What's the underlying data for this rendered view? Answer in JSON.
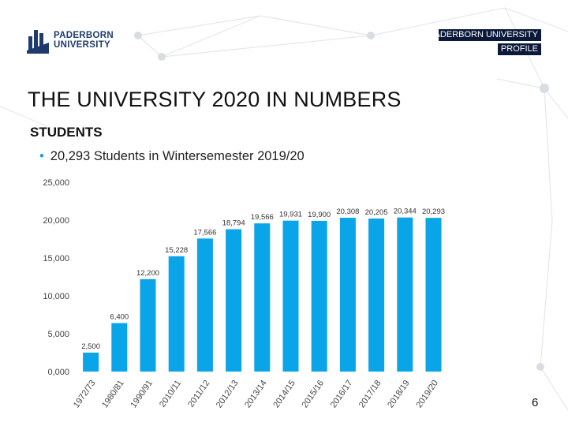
{
  "header": {
    "logo": {
      "line1": "PADERBORN",
      "line2": "UNIVERSITY"
    },
    "tag_line1": "PADERBORN UNIVERSITY",
    "tag_line2": "PROFILE"
  },
  "title": "THE UNIVERSITY 2020 IN NUMBERS",
  "subtitle": "STUDENTS",
  "bullet": "20,293 Students in Wintersemester 2019/20",
  "page_number": "6",
  "colors": {
    "bar": "#0aa4e8",
    "tag_bg": "#0b1a3a",
    "accent": "#1a9be0",
    "network": "#dfe3e8"
  },
  "chart_data": {
    "type": "bar",
    "categories": [
      "1972/73",
      "1980/81",
      "1990/91",
      "2010/11",
      "2011/12",
      "2012/13",
      "2013/14",
      "2014/15",
      "2015/16",
      "2016/17",
      "2017/18",
      "2018/19",
      "2019/20"
    ],
    "values": [
      2500,
      6400,
      12200,
      15228,
      17566,
      18794,
      19566,
      19931,
      19900,
      20308,
      20205,
      20344,
      20293
    ],
    "value_labels": [
      "2,500",
      "6,400",
      "12,200",
      "15,228",
      "17,566",
      "18,794",
      "19,566",
      "19,931",
      "19,900",
      "20,308",
      "20,205",
      "20,344",
      "20,293"
    ],
    "yticks": [
      "0,000",
      "5,000",
      "10,000",
      "15,000",
      "20,000",
      "25,000"
    ],
    "ylim": [
      0,
      25000
    ],
    "grid": false,
    "legend": "none",
    "title": "",
    "xlabel": "",
    "ylabel": ""
  }
}
